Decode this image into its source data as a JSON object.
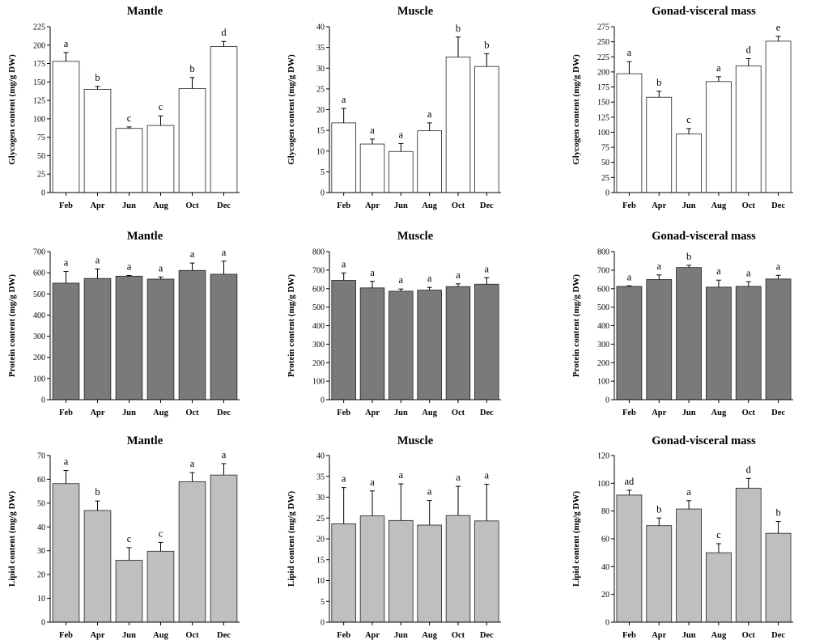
{
  "figure": {
    "row_styles": [
      {
        "fill": "#ffffff"
      },
      {
        "fill": "#7a7a7a"
      },
      {
        "fill": "#bfbfbf"
      }
    ]
  },
  "chart_data": [
    {
      "type": "bar",
      "title": "Mantle",
      "ylabel": "Glycogen content (mg/g DW)",
      "categories": [
        "Feb",
        "Apr",
        "Jun",
        "Aug",
        "Oct",
        "Dec"
      ],
      "values": [
        178,
        140,
        87,
        91,
        141,
        198
      ],
      "errors": [
        12,
        4,
        2,
        13,
        15,
        7
      ],
      "letters": [
        "a",
        "b",
        "c",
        "c",
        "b",
        "d"
      ],
      "ylim": [
        0,
        225
      ],
      "yticks": [
        0,
        25,
        50,
        75,
        100,
        125,
        150,
        175,
        200,
        225
      ]
    },
    {
      "type": "bar",
      "title": "Muscle",
      "ylabel": "Glycogen content (mg/g DW)",
      "categories": [
        "Feb",
        "Apr",
        "Jun",
        "Aug",
        "Oct",
        "Dec"
      ],
      "values": [
        16.8,
        11.7,
        9.9,
        14.9,
        32.7,
        30.4
      ],
      "errors": [
        3.5,
        1.2,
        1.9,
        1.9,
        4.8,
        3.1
      ],
      "letters": [
        "a",
        "a",
        "a",
        "a",
        "b",
        "b"
      ],
      "ylim": [
        0,
        40
      ],
      "yticks": [
        0,
        5,
        10,
        15,
        20,
        25,
        30,
        35,
        40
      ]
    },
    {
      "type": "bar",
      "title": "Gonad-visceral mass",
      "ylabel": "Glycogen content (mg/g DW)",
      "categories": [
        "Feb",
        "Apr",
        "Jun",
        "Aug",
        "Oct",
        "Dec"
      ],
      "values": [
        197,
        158,
        97,
        184,
        210,
        251
      ],
      "errors": [
        20,
        10,
        9,
        8,
        12,
        8
      ],
      "letters": [
        "a",
        "b",
        "c",
        "a",
        "d",
        "e"
      ],
      "ylim": [
        0,
        275
      ],
      "yticks": [
        0,
        25,
        50,
        75,
        100,
        125,
        150,
        175,
        200,
        225,
        250,
        275
      ]
    },
    {
      "type": "bar",
      "title": "Mantle",
      "ylabel": "Protein content (mg/g DW)",
      "categories": [
        "Feb",
        "Apr",
        "Jun",
        "Aug",
        "Oct",
        "Dec"
      ],
      "values": [
        551,
        573,
        584,
        570,
        611,
        593
      ],
      "errors": [
        55,
        45,
        3,
        10,
        35,
        62
      ],
      "letters": [
        "a",
        "a",
        "a",
        "a",
        "a",
        "a"
      ],
      "ylim": [
        0,
        700
      ],
      "yticks": [
        0,
        100,
        200,
        300,
        400,
        500,
        600,
        700
      ]
    },
    {
      "type": "bar",
      "title": "Muscle",
      "ylabel": "Protein content (mg/g DW)",
      "categories": [
        "Feb",
        "Apr",
        "Jun",
        "Aug",
        "Oct",
        "Dec"
      ],
      "values": [
        645,
        604,
        586,
        592,
        611,
        624
      ],
      "errors": [
        40,
        35,
        12,
        15,
        15,
        35
      ],
      "letters": [
        "a",
        "a",
        "a",
        "a",
        "a",
        "a"
      ],
      "ylim": [
        0,
        800
      ],
      "yticks": [
        0,
        100,
        200,
        300,
        400,
        500,
        600,
        700,
        800
      ]
    },
    {
      "type": "bar",
      "title": "Gonad-visceral mass",
      "ylabel": "Protein content (mg/g DW)",
      "categories": [
        "Feb",
        "Apr",
        "Jun",
        "Aug",
        "Oct",
        "Dec"
      ],
      "values": [
        612,
        649,
        714,
        608,
        612,
        652
      ],
      "errors": [
        3,
        25,
        12,
        38,
        25,
        20
      ],
      "letters": [
        "a",
        "a",
        "b",
        "a",
        "a",
        "a"
      ],
      "ylim": [
        0,
        800
      ],
      "yticks": [
        0,
        100,
        200,
        300,
        400,
        500,
        600,
        700,
        800
      ]
    },
    {
      "type": "bar",
      "title": "Mantle",
      "ylabel": "Lipid content (mg/g DW)",
      "categories": [
        "Feb",
        "Apr",
        "Jun",
        "Aug",
        "Oct",
        "Dec"
      ],
      "values": [
        58.2,
        46.9,
        26.0,
        29.8,
        59.0,
        61.8
      ],
      "errors": [
        5.5,
        4.0,
        5.3,
        3.7,
        3.8,
        4.8
      ],
      "letters": [
        "a",
        "b",
        "c",
        "c",
        "a",
        "a"
      ],
      "ylim": [
        0,
        70
      ],
      "yticks": [
        0,
        10,
        20,
        30,
        40,
        50,
        60,
        70
      ]
    },
    {
      "type": "bar",
      "title": "Muscle",
      "ylabel": "Lipid content (mg/g DW)",
      "categories": [
        "Feb",
        "Apr",
        "Jun",
        "Aug",
        "Oct",
        "Dec"
      ],
      "values": [
        23.6,
        25.5,
        24.4,
        23.3,
        25.6,
        24.3
      ],
      "errors": [
        8.7,
        6.0,
        8.8,
        5.9,
        7.0,
        8.8
      ],
      "letters": [
        "a",
        "a",
        "a",
        "a",
        "a",
        "a"
      ],
      "ylim": [
        0,
        40
      ],
      "yticks": [
        0,
        5,
        10,
        15,
        20,
        25,
        30,
        35,
        40
      ]
    },
    {
      "type": "bar",
      "title": "Gonad-visceral mass",
      "ylabel": "Lipid content (mg/g DW)",
      "categories": [
        "Feb",
        "Apr",
        "Jun",
        "Aug",
        "Oct",
        "Dec"
      ],
      "values": [
        91.5,
        69.5,
        81.5,
        50.0,
        96.5,
        64.0
      ],
      "errors": [
        3.5,
        5.5,
        6.0,
        6.5,
        7.0,
        8.5
      ],
      "letters": [
        "ad",
        "b",
        "a",
        "c",
        "d",
        "b"
      ],
      "ylim": [
        0,
        120
      ],
      "yticks": [
        0,
        20,
        40,
        60,
        80,
        100,
        120
      ]
    }
  ]
}
